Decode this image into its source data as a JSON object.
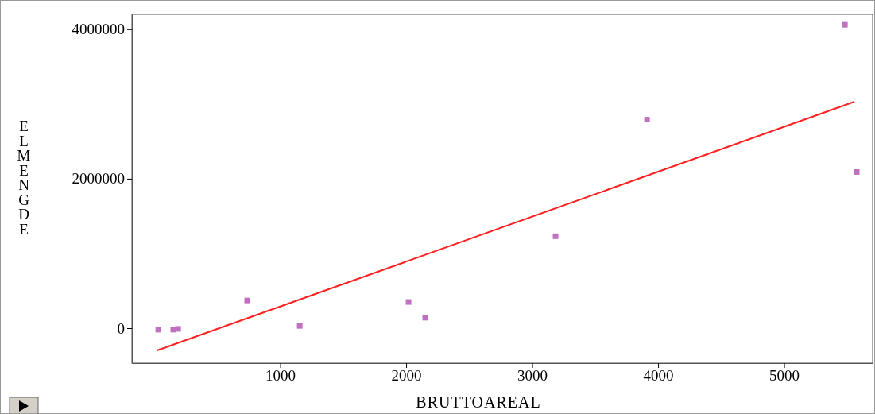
{
  "chart_data": {
    "type": "scatter",
    "xlabel": "BRUTTOAREAL",
    "ylabel": "ELMENGDE",
    "xlim": [
      -177,
      5703
    ],
    "ylim": [
      -468000,
      4200000
    ],
    "xticks": [
      1000,
      2000,
      3000,
      4000,
      5000
    ],
    "yticks": [
      0,
      2000000,
      4000000
    ],
    "grid": false,
    "series": [
      {
        "marker": "square",
        "color": "#c070c0",
        "x": [
          32,
          151,
          190,
          738,
          1155,
          2019,
          2151,
          3186,
          3912,
          5483,
          5577
        ],
        "values": [
          -20000,
          -20000,
          -10000,
          370000,
          30000,
          350000,
          140000,
          1230000,
          2790000,
          4060000,
          2090000
        ]
      },
      {
        "type": "line",
        "color": "#ff2020",
        "x": [
          19,
          5558
        ],
        "values": [
          -300000,
          3030000
        ]
      }
    ]
  }
}
